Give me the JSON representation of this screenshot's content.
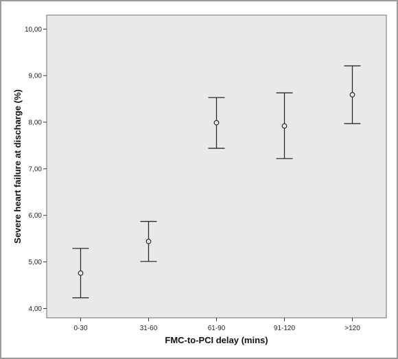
{
  "chart_data": {
    "type": "scatter",
    "subtype": "error-bar",
    "categories": [
      "0-30",
      "31-60",
      "61-90",
      "91-120",
      ">120"
    ],
    "series": [
      {
        "means": [
          4.76,
          5.44,
          7.99,
          7.92,
          8.59
        ],
        "lower": [
          4.23,
          5.01,
          7.44,
          7.22,
          7.97
        ],
        "upper": [
          5.29,
          5.87,
          8.53,
          8.63,
          9.21
        ]
      }
    ],
    "xlabel": "FMC-to-PCI delay (mins)",
    "ylabel": "Severe heart failure at discharge (%)",
    "ylim": [
      3.8,
      10.3
    ],
    "yticks": [
      4,
      5,
      6,
      7,
      8,
      9,
      10
    ],
    "ytick_labels": [
      "4,00",
      "5,00",
      "6,00",
      "7,00",
      "8,00",
      "9,00",
      "10,00"
    ],
    "grid": false,
    "legend": "none",
    "colors": {
      "plot_background": "#e9e9e9",
      "marks": "#2b2b2b",
      "frame_border": "#9a9a9a"
    }
  }
}
